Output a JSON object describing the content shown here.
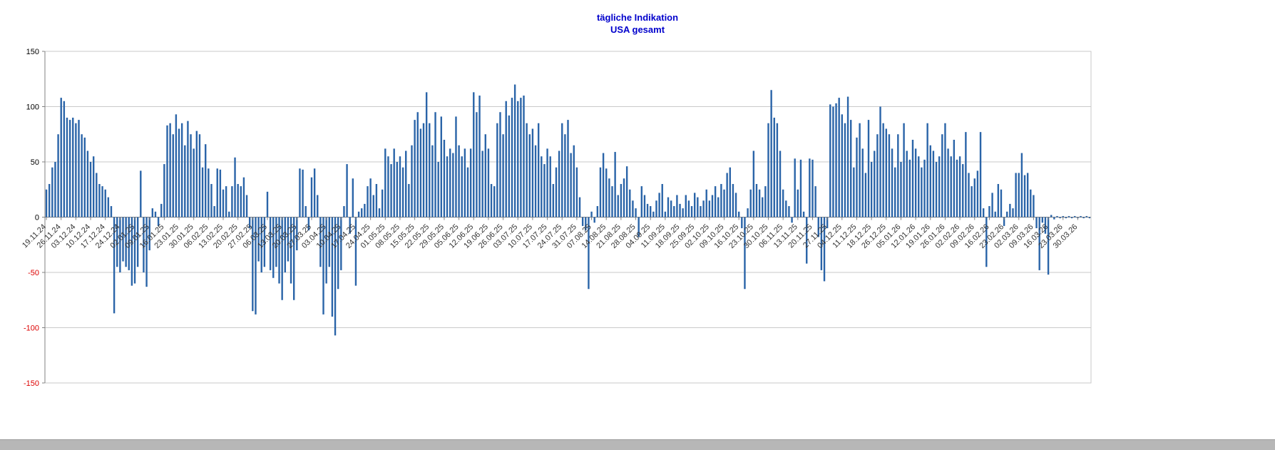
{
  "title": {
    "line1": "tägliche Indikation",
    "line2": "USA gesamt"
  },
  "chart_data": {
    "type": "bar",
    "title": "tägliche Indikation",
    "subtitle": "USA gesamt",
    "xlabel": "",
    "ylabel": "",
    "ylim": [
      -150,
      150
    ],
    "yticks": [
      150,
      100,
      50,
      0,
      -50,
      -100,
      -150
    ],
    "grid": true,
    "legend": "none",
    "label_every": 5,
    "x_labels": [
      "19.11.24",
      "26.11.24",
      "03.12.24",
      "10.12.24",
      "17.12.24",
      "24.12.24",
      "02.01.25",
      "09.01.25",
      "16.01.25",
      "23.01.25",
      "30.01.25",
      "06.02.25",
      "13.02.25",
      "20.02.25",
      "27.02.25",
      "06.03.25",
      "13.03.25",
      "20.03.25",
      "27.03.25",
      "03.04.25",
      "10.04.25",
      "17.04.25",
      "24.04.25",
      "01.05.25",
      "08.05.25",
      "15.05.25",
      "22.05.25",
      "29.05.25",
      "05.06.25",
      "12.06.25",
      "19.06.25",
      "26.06.25",
      "03.07.25",
      "10.07.25",
      "17.07.25",
      "24.07.25",
      "31.07.25",
      "07.08.25",
      "14.08.25",
      "21.08.25",
      "28.08.25",
      "04.09.25",
      "11.09.25",
      "18.09.25",
      "25.09.25",
      "02.10.25",
      "09.10.25",
      "16.10.25",
      "23.10.25",
      "30.10.25",
      "06.11.25",
      "13.11.25",
      "20.11.25",
      "27.11.25",
      "04.12.25",
      "11.12.25",
      "18.12.25",
      "26.12.25",
      "05.01.26",
      "12.01.26",
      "19.01.26",
      "26.01.26",
      "02.02.26",
      "09.02.26",
      "16.02.26",
      "23.02.26",
      "02.03.26",
      "09.03.26",
      "16.03.26",
      "23.03.26",
      "30.03.26"
    ],
    "values": [
      25,
      30,
      45,
      50,
      75,
      108,
      105,
      90,
      88,
      90,
      85,
      88,
      75,
      72,
      60,
      50,
      55,
      40,
      30,
      28,
      25,
      18,
      10,
      -87,
      -45,
      -50,
      -40,
      -45,
      -48,
      -62,
      -60,
      -45,
      42,
      -50,
      -63,
      -30,
      8,
      5,
      -8,
      12,
      48,
      83,
      85,
      75,
      93,
      80,
      85,
      65,
      87,
      75,
      62,
      78,
      75,
      45,
      66,
      44,
      30,
      10,
      44,
      43,
      25,
      28,
      5,
      28,
      54,
      30,
      28,
      36,
      20,
      -10,
      -85,
      -88,
      -40,
      -50,
      -45,
      23,
      -48,
      -55,
      -45,
      -60,
      -75,
      -50,
      -40,
      -60,
      -75,
      -30,
      44,
      43,
      10,
      -12,
      36,
      44,
      20,
      -45,
      -88,
      -60,
      -45,
      -90,
      -107,
      -65,
      -48,
      10,
      48,
      -15,
      35,
      -62,
      5,
      8,
      12,
      28,
      35,
      20,
      30,
      8,
      25,
      62,
      55,
      48,
      62,
      50,
      55,
      45,
      60,
      30,
      65,
      88,
      95,
      80,
      85,
      113,
      85,
      65,
      95,
      50,
      91,
      70,
      55,
      62,
      58,
      91,
      65,
      55,
      62,
      45,
      62,
      113,
      95,
      110,
      60,
      75,
      62,
      30,
      28,
      85,
      95,
      75,
      105,
      92,
      108,
      120,
      105,
      108,
      110,
      85,
      75,
      80,
      65,
      85,
      55,
      48,
      62,
      55,
      30,
      45,
      60,
      85,
      75,
      88,
      58,
      65,
      45,
      18,
      -8,
      -12,
      -65,
      5,
      -5,
      10,
      45,
      58,
      44,
      35,
      28,
      59,
      20,
      30,
      35,
      46,
      25,
      15,
      8,
      -18,
      28,
      20,
      12,
      10,
      5,
      15,
      22,
      30,
      5,
      18,
      15,
      10,
      20,
      12,
      8,
      20,
      15,
      10,
      22,
      18,
      10,
      15,
      25,
      15,
      20,
      28,
      18,
      30,
      25,
      40,
      45,
      30,
      22,
      5,
      -10,
      -65,
      8,
      25,
      60,
      30,
      25,
      18,
      28,
      85,
      115,
      90,
      85,
      60,
      25,
      15,
      10,
      -5,
      53,
      25,
      52,
      5,
      -42,
      53,
      52,
      28,
      -18,
      -48,
      -58,
      -10,
      102,
      100,
      103,
      108,
      93,
      85,
      109,
      88,
      45,
      72,
      85,
      62,
      40,
      88,
      50,
      60,
      75,
      100,
      85,
      80,
      75,
      62,
      45,
      75,
      50,
      85,
      60,
      52,
      70,
      62,
      55,
      45,
      52,
      85,
      65,
      60,
      50,
      55,
      75,
      85,
      62,
      55,
      70,
      52,
      55,
      48,
      77,
      40,
      28,
      35,
      42,
      77,
      8,
      -45,
      10,
      22,
      5,
      30,
      25,
      -8,
      5,
      12,
      8,
      40,
      40,
      58,
      38,
      40,
      25,
      20,
      -10,
      -48,
      -5,
      -15,
      -52,
      2,
      -2,
      1,
      -1,
      1,
      -1,
      1,
      -1,
      1,
      -1,
      1,
      -1,
      1,
      -1
    ],
    "colors": {
      "bar": "#2a64a8",
      "grid": "#c9c9c9",
      "axis": "#808080",
      "positive_label": "#000000",
      "negative_label": "#dd0000",
      "tick_label": "#333333",
      "title": "#0000cc"
    }
  }
}
